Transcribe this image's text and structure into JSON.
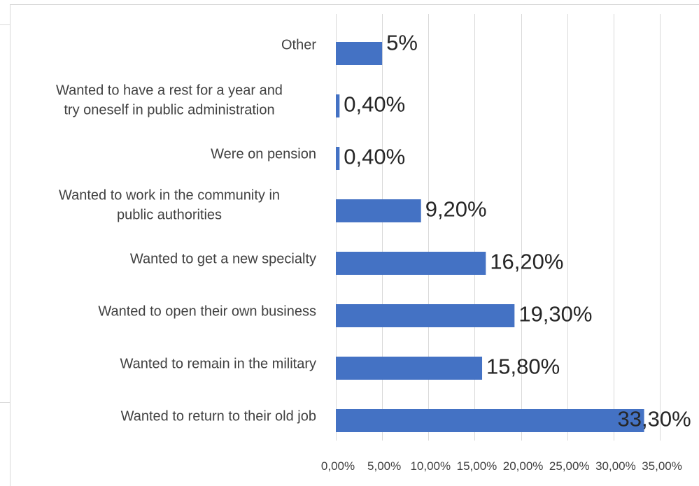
{
  "chart_data": {
    "type": "bar",
    "orientation": "horizontal",
    "categories": [
      "Other",
      "Wanted to have a rest for a year and try oneself in public administration",
      "Were on pension",
      "Wanted to work in the community in public authorities",
      "Wanted to get a new specialty",
      "Wanted to open their own business",
      "Wanted to remain in the military",
      "Wanted to return to their old job"
    ],
    "category_lines": [
      [
        "Other"
      ],
      [
        "Wanted to have a rest for a year and",
        "try oneself in public administration"
      ],
      [
        "Were on pension"
      ],
      [
        "Wanted to work in the community in",
        "public authorities"
      ],
      [
        "Wanted to get a new specialty"
      ],
      [
        "Wanted to open their own business"
      ],
      [
        "Wanted to remain in the military"
      ],
      [
        "Wanted to return to their old job"
      ]
    ],
    "values": [
      5,
      0.4,
      0.4,
      9.2,
      16.2,
      19.3,
      15.8,
      33.3
    ],
    "data_labels": [
      "5%",
      "0,40%",
      "0,40%",
      "9,20%",
      "16,20%",
      "19,30%",
      "15,80%",
      "33,30%"
    ],
    "x_ticks": [
      0,
      5,
      10,
      15,
      20,
      25,
      30,
      35
    ],
    "x_tick_labels": [
      "0,00%",
      "5,00%",
      "10,00%",
      "15,00%",
      "20,00%",
      "25,00%",
      "30,00%",
      "35,00%"
    ],
    "xlim": [
      0,
      35
    ],
    "grid": true,
    "bar_color": "#4472C4",
    "title": "",
    "xlabel": "",
    "ylabel": ""
  }
}
